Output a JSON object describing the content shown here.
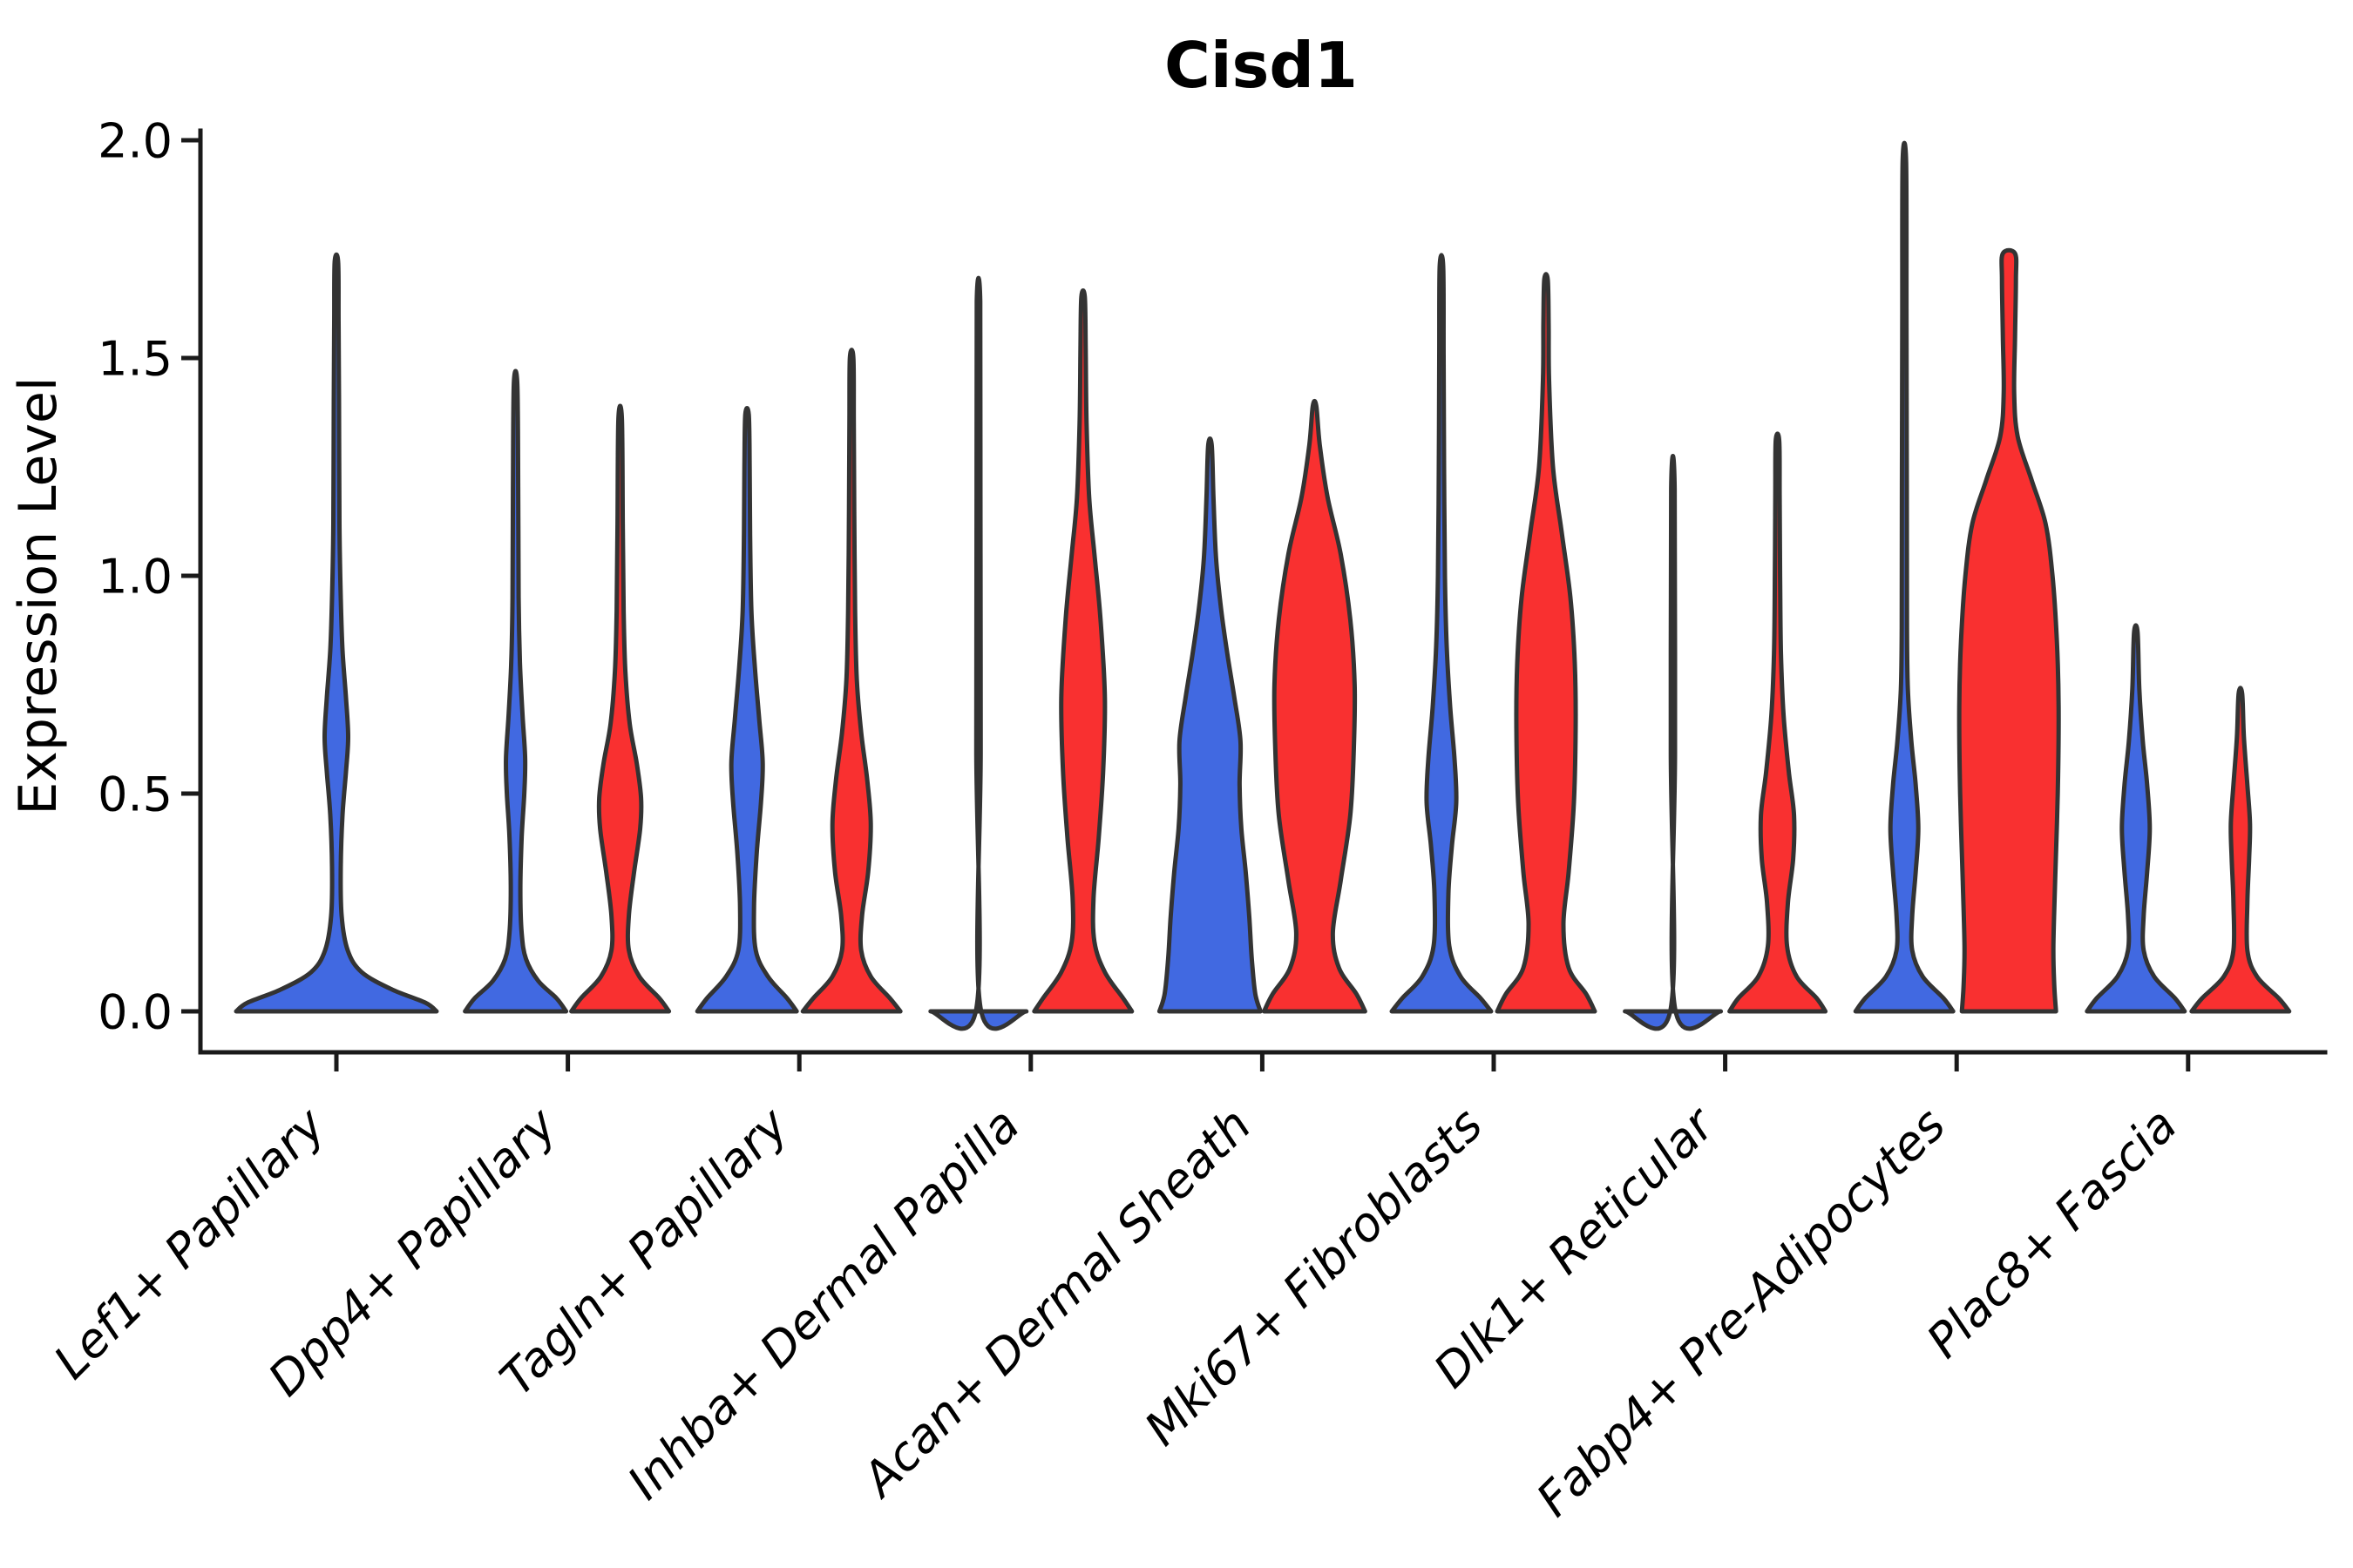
{
  "chart_data": {
    "type": "violin",
    "title": "Cisd1",
    "xlabel": "",
    "ylabel": "Expression Level",
    "ylim": [
      -0.09,
      2.06
    ],
    "yticks": [
      0.0,
      0.5,
      1.0,
      1.5,
      2.0
    ],
    "ytick_labels": [
      "0.0",
      "0.5",
      "1.0",
      "1.5",
      "2.0"
    ],
    "grid": false,
    "legend": "none",
    "categories": [
      "Lef1+ Papillary",
      "Dpp4+ Papillary",
      "Tagln+ Papillary",
      "Inhba+ Dermal Papilla",
      "Acan+ Dermal Sheath",
      "Mki67+ Fibroblasts",
      "Dlk1+ Reticular",
      "Fabp4+ Pre-Adipocytes",
      "Plac8+ Fascia"
    ],
    "series": [
      {
        "id": "group-blue",
        "color": "#4169E1"
      },
      {
        "id": "group-red",
        "color": "#F93030"
      }
    ],
    "outline_color": "#333333",
    "violins": [
      {
        "category": 0,
        "series": 0,
        "align": "center",
        "max_expression": 1.72,
        "profile": [
          [
            0,
            115
          ],
          [
            0.02,
            102
          ],
          [
            0.05,
            64
          ],
          [
            0.09,
            29
          ],
          [
            0.14,
            13
          ],
          [
            0.22,
            6
          ],
          [
            0.33,
            5
          ],
          [
            0.45,
            7
          ],
          [
            0.55,
            11
          ],
          [
            0.63,
            13.5
          ],
          [
            0.72,
            11
          ],
          [
            0.83,
            7
          ],
          [
            0.95,
            5
          ],
          [
            1.12,
            3.5
          ],
          [
            1.4,
            3
          ],
          [
            1.58,
            2.5
          ],
          [
            1.72,
            2
          ]
        ]
      },
      {
        "category": 1,
        "series": 0,
        "align": "left",
        "max_expression": 1.44,
        "profile": [
          [
            0,
            58
          ],
          [
            0.03,
            47
          ],
          [
            0.07,
            26
          ],
          [
            0.12,
            12
          ],
          [
            0.18,
            7
          ],
          [
            0.28,
            5.5
          ],
          [
            0.4,
            7
          ],
          [
            0.5,
            10
          ],
          [
            0.58,
            11
          ],
          [
            0.68,
            8
          ],
          [
            0.8,
            5
          ],
          [
            0.95,
            3.5
          ],
          [
            1.2,
            3
          ],
          [
            1.44,
            2
          ]
        ]
      },
      {
        "category": 1,
        "series": 1,
        "align": "right",
        "max_expression": 1.36,
        "profile": [
          [
            0,
            56
          ],
          [
            0.03,
            45
          ],
          [
            0.08,
            22
          ],
          [
            0.14,
            10
          ],
          [
            0.22,
            10
          ],
          [
            0.32,
            16
          ],
          [
            0.42,
            23
          ],
          [
            0.49,
            24
          ],
          [
            0.57,
            19
          ],
          [
            0.66,
            11
          ],
          [
            0.78,
            6
          ],
          [
            0.92,
            4
          ],
          [
            1.12,
            3
          ],
          [
            1.36,
            2
          ]
        ]
      },
      {
        "category": 2,
        "series": 0,
        "align": "left",
        "max_expression": 1.37,
        "profile": [
          [
            0,
            57
          ],
          [
            0.03,
            46
          ],
          [
            0.08,
            24
          ],
          [
            0.14,
            10
          ],
          [
            0.24,
            8
          ],
          [
            0.36,
            11
          ],
          [
            0.48,
            16
          ],
          [
            0.57,
            18
          ],
          [
            0.67,
            14
          ],
          [
            0.79,
            9
          ],
          [
            0.92,
            5
          ],
          [
            1.1,
            3.5
          ],
          [
            1.25,
            3
          ],
          [
            1.37,
            2
          ]
        ]
      },
      {
        "category": 2,
        "series": 1,
        "align": "right",
        "max_expression": 1.5,
        "profile": [
          [
            0,
            56
          ],
          [
            0.03,
            44
          ],
          [
            0.08,
            22
          ],
          [
            0.14,
            11
          ],
          [
            0.22,
            12
          ],
          [
            0.32,
            19
          ],
          [
            0.43,
            22
          ],
          [
            0.53,
            18
          ],
          [
            0.64,
            11
          ],
          [
            0.76,
            6
          ],
          [
            0.92,
            4
          ],
          [
            1.15,
            3
          ],
          [
            1.35,
            2.5
          ],
          [
            1.5,
            2
          ]
        ]
      },
      {
        "category": 3,
        "series": 0,
        "align": "left",
        "max_expression": 1.63,
        "collapsed": true,
        "profile": [
          [
            0,
            55
          ],
          [
            0.006,
            2.5
          ],
          [
            0.6,
            2.5
          ],
          [
            1.2,
            2.2
          ],
          [
            1.63,
            2
          ]
        ]
      },
      {
        "category": 3,
        "series": 1,
        "align": "right",
        "max_expression": 1.64,
        "profile": [
          [
            0,
            56
          ],
          [
            0.03,
            46
          ],
          [
            0.09,
            25
          ],
          [
            0.16,
            13
          ],
          [
            0.26,
            12
          ],
          [
            0.4,
            18
          ],
          [
            0.55,
            23
          ],
          [
            0.72,
            25
          ],
          [
            0.9,
            20
          ],
          [
            1.05,
            13
          ],
          [
            1.18,
            7
          ],
          [
            1.35,
            4
          ],
          [
            1.52,
            3
          ],
          [
            1.64,
            2
          ]
        ]
      },
      {
        "category": 4,
        "series": 0,
        "align": "left",
        "max_expression": 1.3,
        "profile": [
          [
            0,
            58
          ],
          [
            0.04,
            52
          ],
          [
            0.12,
            48
          ],
          [
            0.22,
            45
          ],
          [
            0.32,
            41
          ],
          [
            0.42,
            36
          ],
          [
            0.52,
            34
          ],
          [
            0.62,
            35
          ],
          [
            0.72,
            28
          ],
          [
            0.82,
            20
          ],
          [
            0.92,
            13
          ],
          [
            1.04,
            7
          ],
          [
            1.18,
            4
          ],
          [
            1.3,
            2
          ]
        ]
      },
      {
        "category": 4,
        "series": 1,
        "align": "right",
        "max_expression": 1.39,
        "profile": [
          [
            0,
            58
          ],
          [
            0.04,
            48
          ],
          [
            0.1,
            28
          ],
          [
            0.18,
            21
          ],
          [
            0.3,
            30
          ],
          [
            0.45,
            41
          ],
          [
            0.6,
            45
          ],
          [
            0.75,
            46
          ],
          [
            0.9,
            41
          ],
          [
            1.05,
            30
          ],
          [
            1.18,
            15
          ],
          [
            1.3,
            6
          ],
          [
            1.39,
            2
          ]
        ]
      },
      {
        "category": 5,
        "series": 0,
        "align": "left",
        "max_expression": 1.71,
        "profile": [
          [
            0,
            57
          ],
          [
            0.03,
            45
          ],
          [
            0.08,
            22
          ],
          [
            0.15,
            9
          ],
          [
            0.27,
            8
          ],
          [
            0.38,
            12
          ],
          [
            0.48,
            17
          ],
          [
            0.58,
            15
          ],
          [
            0.7,
            10
          ],
          [
            0.84,
            6
          ],
          [
            1.0,
            4
          ],
          [
            1.25,
            3
          ],
          [
            1.5,
            2.5
          ],
          [
            1.71,
            2
          ]
        ]
      },
      {
        "category": 5,
        "series": 1,
        "align": "right",
        "max_expression": 1.68,
        "profile": [
          [
            0,
            56
          ],
          [
            0.04,
            46
          ],
          [
            0.1,
            26
          ],
          [
            0.2,
            20
          ],
          [
            0.32,
            26
          ],
          [
            0.48,
            32
          ],
          [
            0.65,
            34
          ],
          [
            0.8,
            33
          ],
          [
            0.95,
            28
          ],
          [
            1.1,
            18
          ],
          [
            1.25,
            8
          ],
          [
            1.45,
            3.5
          ],
          [
            1.58,
            3
          ],
          [
            1.68,
            2
          ]
        ]
      },
      {
        "category": 6,
        "series": 0,
        "align": "left",
        "max_expression": 1.2,
        "collapsed": true,
        "profile": [
          [
            0,
            55
          ],
          [
            0.006,
            2.5
          ],
          [
            0.6,
            2.4
          ],
          [
            1.2,
            2
          ]
        ]
      },
      {
        "category": 6,
        "series": 1,
        "align": "right",
        "max_expression": 1.31,
        "profile": [
          [
            0,
            55
          ],
          [
            0.03,
            45
          ],
          [
            0.08,
            22
          ],
          [
            0.15,
            11
          ],
          [
            0.25,
            12
          ],
          [
            0.35,
            18
          ],
          [
            0.45,
            19
          ],
          [
            0.55,
            13
          ],
          [
            0.68,
            7
          ],
          [
            0.82,
            4
          ],
          [
            1.0,
            3
          ],
          [
            1.18,
            2.5
          ],
          [
            1.31,
            2
          ]
        ]
      },
      {
        "category": 7,
        "series": 0,
        "align": "left",
        "max_expression": 1.95,
        "profile": [
          [
            0,
            56
          ],
          [
            0.03,
            45
          ],
          [
            0.08,
            21
          ],
          [
            0.14,
            9
          ],
          [
            0.22,
            9
          ],
          [
            0.32,
            13
          ],
          [
            0.42,
            16
          ],
          [
            0.52,
            13
          ],
          [
            0.62,
            8
          ],
          [
            0.74,
            4
          ],
          [
            0.88,
            3
          ],
          [
            1.2,
            2.8
          ],
          [
            1.6,
            2.4
          ],
          [
            1.95,
            2
          ]
        ]
      },
      {
        "category": 7,
        "series": 1,
        "align": "right",
        "max_expression": 1.74,
        "blunt_top": true,
        "profile": [
          [
            0,
            54
          ],
          [
            0.06,
            52
          ],
          [
            0.15,
            51
          ],
          [
            0.3,
            53
          ],
          [
            0.5,
            56
          ],
          [
            0.7,
            57
          ],
          [
            0.85,
            55
          ],
          [
            1.0,
            50
          ],
          [
            1.12,
            42
          ],
          [
            1.22,
            26
          ],
          [
            1.32,
            10
          ],
          [
            1.42,
            6
          ],
          [
            1.55,
            7
          ],
          [
            1.68,
            8
          ],
          [
            1.74,
            7
          ]
        ]
      },
      {
        "category": 8,
        "series": 0,
        "align": "left",
        "max_expression": 0.87,
        "profile": [
          [
            0,
            56
          ],
          [
            0.03,
            45
          ],
          [
            0.08,
            21
          ],
          [
            0.14,
            9
          ],
          [
            0.22,
            9
          ],
          [
            0.32,
            13
          ],
          [
            0.42,
            16
          ],
          [
            0.52,
            13
          ],
          [
            0.62,
            8
          ],
          [
            0.74,
            4
          ],
          [
            0.87,
            2
          ]
        ]
      },
      {
        "category": 8,
        "series": 1,
        "align": "right",
        "max_expression": 0.73,
        "profile": [
          [
            0,
            56
          ],
          [
            0.03,
            44
          ],
          [
            0.08,
            19
          ],
          [
            0.14,
            8
          ],
          [
            0.25,
            8
          ],
          [
            0.35,
            10
          ],
          [
            0.43,
            11
          ],
          [
            0.52,
            8
          ],
          [
            0.63,
            4
          ],
          [
            0.73,
            2
          ]
        ]
      }
    ]
  }
}
